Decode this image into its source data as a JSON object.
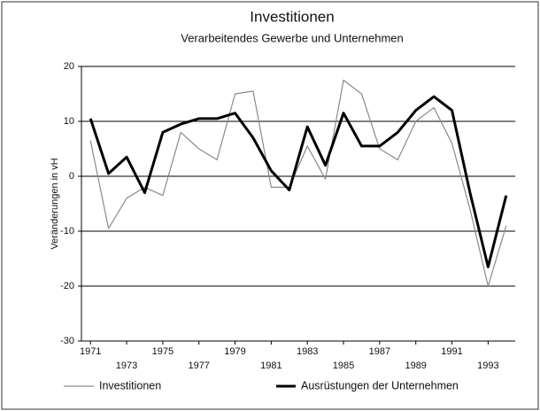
{
  "chart_data": {
    "type": "line",
    "title": "Investitionen",
    "subtitle": "Verarbeitendes Gewerbe und Unternehmen",
    "y_label": "Veränderungen in vH",
    "x": [
      1971,
      1972,
      1973,
      1974,
      1975,
      1976,
      1977,
      1978,
      1979,
      1980,
      1981,
      1982,
      1983,
      1984,
      1985,
      1986,
      1987,
      1988,
      1989,
      1990,
      1991,
      1992,
      1993,
      1994
    ],
    "series": [
      {
        "name": "Investitionen",
        "color": "#8a8a8a",
        "values": [
          6.5,
          -9.5,
          -4,
          -2,
          -3.5,
          8,
          5,
          3,
          15,
          15.5,
          -2,
          -2,
          5.5,
          -0.5,
          17.5,
          15,
          5,
          3,
          10,
          12.5,
          6,
          -6,
          -20,
          -9
        ]
      },
      {
        "name": "Ausrüstungen der Unternehmen",
        "color": "#000000",
        "values": [
          10.5,
          0.5,
          3.5,
          -3,
          8,
          9.5,
          10.5,
          10.5,
          11.5,
          7,
          1,
          -2.5,
          9,
          2,
          11.5,
          5.5,
          5.5,
          8,
          12,
          14.5,
          12,
          -3,
          -16.5,
          -3.5
        ]
      }
    ],
    "xlim": [
      1970.5,
      1994.5
    ],
    "xticks": [
      1971,
      1973,
      1975,
      1977,
      1979,
      1981,
      1983,
      1985,
      1987,
      1989,
      1991,
      1993
    ],
    "ylim": [
      -30,
      20
    ],
    "yticks": [
      -30,
      -20,
      -10,
      0,
      10,
      20
    ],
    "grid": true
  }
}
